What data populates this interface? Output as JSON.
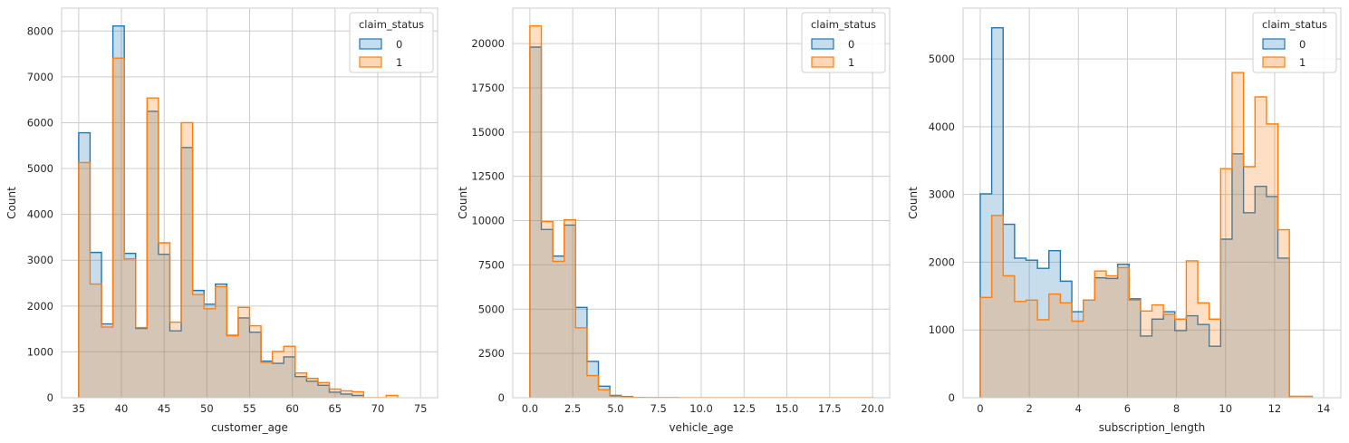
{
  "chart_data": [
    {
      "type": "histogram-step",
      "xlabel": "customer_age",
      "ylabel": "Count",
      "xlim": [
        33,
        77
      ],
      "ylim": [
        0,
        8500
      ],
      "xticks": [
        35,
        40,
        45,
        50,
        55,
        60,
        65,
        70,
        75
      ],
      "yticks": [
        0,
        1000,
        2000,
        3000,
        4000,
        5000,
        6000,
        7000,
        8000
      ],
      "legend": {
        "title": "claim_status",
        "position": "top-right"
      },
      "bin_start": 35,
      "bin_width": 1.3333,
      "series": [
        {
          "name": "0",
          "color": "#1f77b4",
          "fill": "#c6dcec",
          "values": [
            5780,
            3170,
            1610,
            8110,
            3150,
            1510,
            6250,
            3130,
            1460,
            5460,
            2340,
            2040,
            2480,
            1360,
            1740,
            1430,
            800,
            750,
            890,
            460,
            360,
            270,
            120,
            80,
            50,
            0,
            0,
            0,
            0,
            0
          ]
        },
        {
          "name": "1",
          "color": "#ff7f0e",
          "fill": "#ffd6b3",
          "values": [
            5130,
            2480,
            1540,
            7410,
            3030,
            1530,
            6540,
            3380,
            1650,
            6000,
            2250,
            1940,
            2420,
            1350,
            1970,
            1570,
            770,
            1010,
            1120,
            540,
            420,
            330,
            190,
            150,
            130,
            0,
            0,
            50,
            0,
            0
          ]
        }
      ]
    },
    {
      "type": "histogram-step",
      "xlabel": "vehicle_age",
      "ylabel": "Count",
      "xlim": [
        -1,
        21
      ],
      "ylim": [
        0,
        22000
      ],
      "xticks": [
        0.0,
        2.5,
        5.0,
        7.5,
        10.0,
        12.5,
        15.0,
        17.5,
        20.0
      ],
      "xtick_labels": [
        "0.0",
        "2.5",
        "5.0",
        "7.5",
        "10.0",
        "12.5",
        "15.0",
        "17.5",
        "20.0"
      ],
      "yticks": [
        0,
        2500,
        5000,
        7500,
        10000,
        12500,
        15000,
        17500,
        20000
      ],
      "legend": {
        "title": "claim_status",
        "position": "top-right"
      },
      "bin_start": 0,
      "bin_width": 0.6667,
      "series": [
        {
          "name": "0",
          "color": "#1f77b4",
          "fill": "#c6dcec",
          "values": [
            19800,
            9500,
            8000,
            9750,
            5100,
            2050,
            650,
            130,
            60,
            10,
            5,
            5,
            5,
            0,
            0,
            0,
            0,
            0,
            0,
            0,
            0,
            0,
            0,
            0,
            0,
            0,
            0,
            0,
            0,
            0
          ]
        },
        {
          "name": "1",
          "color": "#ff7f0e",
          "fill": "#ffd6b3",
          "values": [
            21000,
            9950,
            7700,
            10050,
            3950,
            1250,
            450,
            90,
            30,
            5,
            5,
            5,
            5,
            5,
            5,
            5,
            5,
            5,
            5,
            5,
            5,
            5,
            5,
            5,
            5,
            5,
            5,
            5,
            5,
            5
          ]
        }
      ]
    },
    {
      "type": "histogram-step",
      "xlabel": "subscription_length",
      "ylabel": "Count",
      "xlim": [
        -0.7,
        14.7
      ],
      "ylim": [
        0,
        5750
      ],
      "xticks": [
        0,
        2,
        4,
        6,
        8,
        10,
        12,
        14
      ],
      "yticks": [
        0,
        1000,
        2000,
        3000,
        4000,
        5000
      ],
      "legend": {
        "title": "claim_status",
        "position": "top-right"
      },
      "bin_start": 0,
      "bin_width": 0.4667,
      "series": [
        {
          "name": "0",
          "color": "#1f77b4",
          "fill": "#c6dcec",
          "values": [
            3010,
            5460,
            2560,
            2060,
            2030,
            1910,
            2170,
            1720,
            1270,
            1440,
            1770,
            1760,
            1970,
            1460,
            910,
            1160,
            1270,
            990,
            1210,
            1080,
            760,
            2340,
            3600,
            2730,
            3120,
            2970,
            2060,
            0,
            0,
            0
          ]
        },
        {
          "name": "1",
          "color": "#ff7f0e",
          "fill": "#ffd6b3",
          "values": [
            1480,
            2690,
            1800,
            1420,
            1440,
            1150,
            1530,
            1400,
            1130,
            1440,
            1870,
            1800,
            1920,
            1440,
            1280,
            1370,
            1230,
            1160,
            2020,
            1400,
            1160,
            3380,
            4800,
            3410,
            4440,
            4040,
            2480,
            20,
            20,
            0
          ]
        }
      ]
    }
  ]
}
